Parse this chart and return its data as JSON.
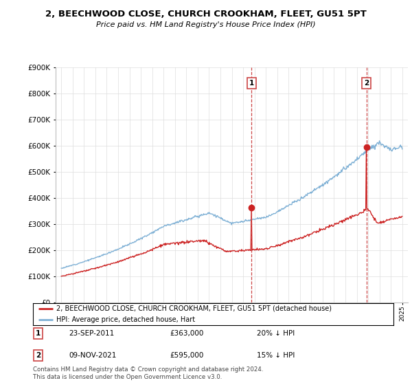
{
  "title": "2, BEECHWOOD CLOSE, CHURCH CROOKHAM, FLEET, GU51 5PT",
  "subtitle": "Price paid vs. HM Land Registry's House Price Index (HPI)",
  "ylim": [
    0,
    900000
  ],
  "yticks": [
    0,
    100000,
    200000,
    300000,
    400000,
    500000,
    600000,
    700000,
    800000,
    900000
  ],
  "ytick_labels": [
    "£0",
    "£100K",
    "£200K",
    "£300K",
    "£400K",
    "£500K",
    "£600K",
    "£700K",
    "£800K",
    "£900K"
  ],
  "hpi_color": "#7eb0d5",
  "price_color": "#cc2222",
  "sale1_date": "23-SEP-2011",
  "sale1_price": 363000,
  "sale1_pct": "20%",
  "sale2_date": "09-NOV-2021",
  "sale2_price": 595000,
  "sale2_pct": "15%",
  "legend_label1": "2, BEECHWOOD CLOSE, CHURCH CROOKHAM, FLEET, GU51 5PT (detached house)",
  "legend_label2": "HPI: Average price, detached house, Hart",
  "footer": "Contains HM Land Registry data © Crown copyright and database right 2024.\nThis data is licensed under the Open Government Licence v3.0.",
  "sale1_x": 2011.73,
  "sale2_x": 2021.86,
  "background_color": "#ffffff",
  "grid_color": "#dddddd",
  "vline_color": "#cc4444"
}
